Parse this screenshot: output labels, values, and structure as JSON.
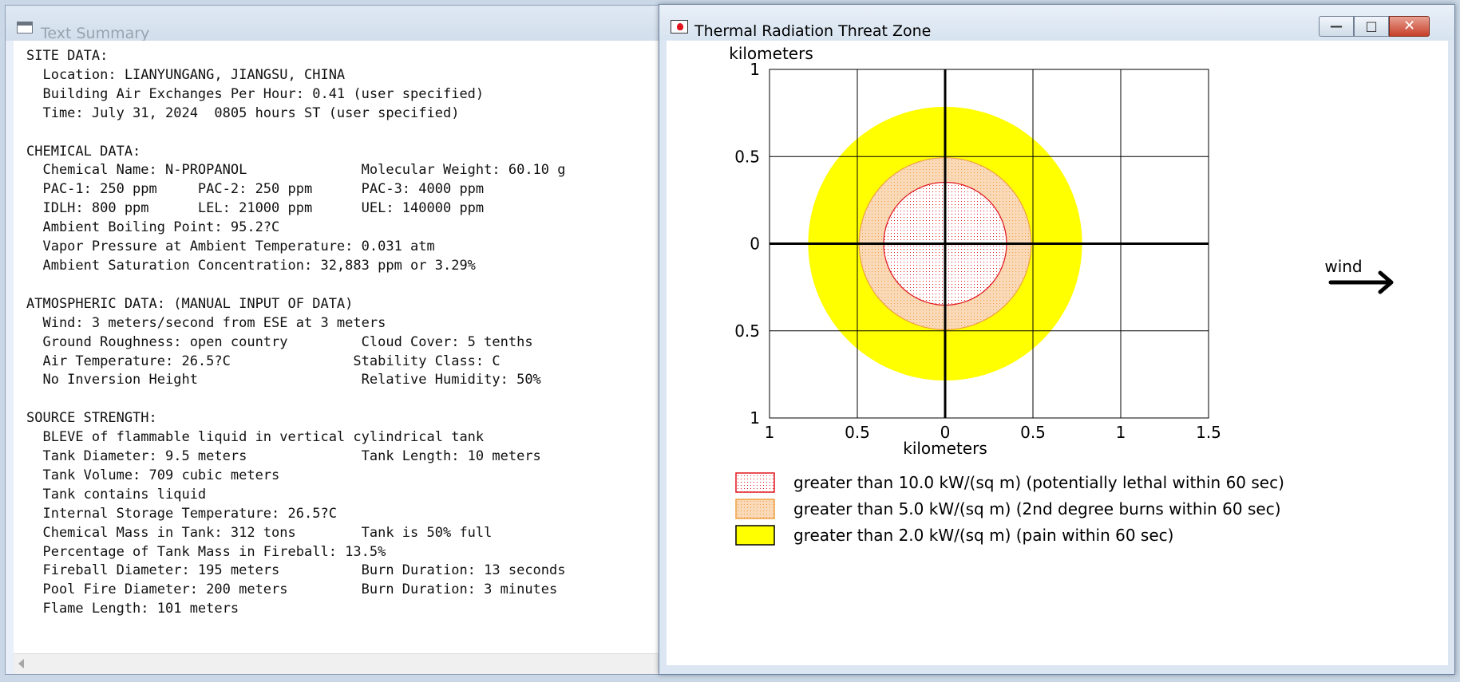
{
  "text_summary": {
    "title": "Text Summary",
    "lines": [
      "SITE DATA:",
      "  Location: LIANYUNGANG, JIANGSU, CHINA",
      "  Building Air Exchanges Per Hour: 0.41 (user specified)",
      "  Time: July 31, 2024  0805 hours ST (user specified)",
      "",
      "CHEMICAL DATA:",
      "  Chemical Name: N-PROPANOL              Molecular Weight: 60.10 g",
      "  PAC-1: 250 ppm     PAC-2: 250 ppm      PAC-3: 4000 ppm",
      "  IDLH: 800 ppm      LEL: 21000 ppm      UEL: 140000 ppm",
      "  Ambient Boiling Point: 95.2?C",
      "  Vapor Pressure at Ambient Temperature: 0.031 atm",
      "  Ambient Saturation Concentration: 32,883 ppm or 3.29%",
      "",
      "ATMOSPHERIC DATA: (MANUAL INPUT OF DATA)",
      "  Wind: 3 meters/second from ESE at 3 meters",
      "  Ground Roughness: open country         Cloud Cover: 5 tenths",
      "  Air Temperature: 26.5?C               Stability Class: C",
      "  No Inversion Height                    Relative Humidity: 50%",
      "",
      "SOURCE STRENGTH:",
      "  BLEVE of flammable liquid in vertical cylindrical tank",
      "  Tank Diameter: 9.5 meters              Tank Length: 10 meters",
      "  Tank Volume: 709 cubic meters",
      "  Tank contains liquid",
      "  Internal Storage Temperature: 26.5?C",
      "  Chemical Mass in Tank: 312 tons        Tank is 50% full",
      "  Percentage of Tank Mass in Fireball: 13.5%",
      "  Fireball Diameter: 195 meters          Burn Duration: 13 seconds",
      "  Pool Fire Diameter: 200 meters         Burn Duration: 3 minutes",
      "  Flame Length: 101 meters"
    ]
  },
  "threat_zone": {
    "title": "Thermal Radiation Threat Zone",
    "wind_label": "wind",
    "colors": {
      "red_zone_stroke": "#e0141c",
      "orange_zone_fill": "#f9d9b8",
      "orange_zone_stroke": "#f0a040",
      "yellow_zone_fill": "#ffff00",
      "grid": "#000000"
    },
    "chart_data": {
      "type": "area",
      "ylabel": "kilometers",
      "xlabel": "kilometers",
      "xlim": [
        -1,
        1.5
      ],
      "ylim": [
        -1,
        1
      ],
      "x_ticks": [
        "1",
        "0.5",
        "0",
        "0.5",
        "1",
        "1.5"
      ],
      "x_tick_values": [
        -1,
        -0.5,
        0,
        0.5,
        1,
        1.5
      ],
      "y_ticks": [
        "1",
        "0.5",
        "0",
        "0.5",
        "1"
      ],
      "y_tick_values": [
        1,
        0.5,
        0,
        -0.5,
        -1
      ],
      "grid": true,
      "zones": [
        {
          "name": "red",
          "radius_km": 0.35,
          "fill": "dots",
          "label": "greater than 10.0 kW/(sq m) (potentially lethal within 60 sec)"
        },
        {
          "name": "orange",
          "radius_km": 0.49,
          "fill": "dots",
          "label": "greater than 5.0 kW/(sq m) (2nd degree burns within 60 sec)"
        },
        {
          "name": "yellow",
          "radius_km": 0.78,
          "fill": "solid",
          "label": "greater than 2.0 kW/(sq m) (pain within 60 sec)"
        }
      ],
      "legend_position": "bottom"
    }
  }
}
